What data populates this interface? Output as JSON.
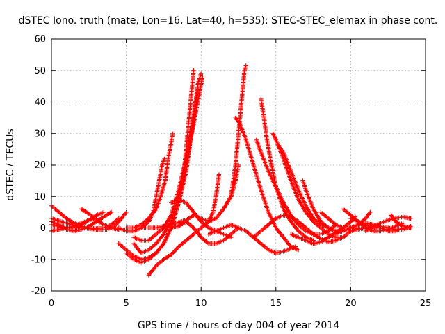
{
  "chart_data": {
    "type": "scatter",
    "title": "dSTEC Iono. truth (mate, Lon=16, Lat=40, h=535): STEC-STEC_elemax in phase cont.",
    "xlabel": "GPS time / hours of day 004 of year 2014",
    "ylabel": "dSTEC  / TECUs",
    "xlim": [
      0,
      25
    ],
    "ylim": [
      -20,
      60
    ],
    "xticks": [
      0,
      5,
      10,
      15,
      20,
      25
    ],
    "yticks": [
      -20,
      -10,
      0,
      10,
      20,
      30,
      40,
      50,
      60
    ],
    "grid": true,
    "legend": "none",
    "marker": "+",
    "colors": {
      "series": "#ff0000"
    },
    "series": [
      {
        "points": [
          [
            0,
            7
          ],
          [
            0.5,
            5
          ],
          [
            1,
            3
          ],
          [
            1.5,
            1.5
          ],
          [
            2,
            0.5
          ],
          [
            2.5,
            0
          ],
          [
            3,
            -0.2
          ],
          [
            3.5,
            0
          ],
          [
            4,
            1
          ],
          [
            4.5,
            3
          ]
        ]
      },
      {
        "points": [
          [
            0,
            2
          ],
          [
            0.5,
            1
          ],
          [
            1,
            0
          ],
          [
            1.5,
            0
          ],
          [
            2,
            1
          ],
          [
            2.5,
            2.5
          ],
          [
            3,
            4
          ],
          [
            3.5,
            5
          ]
        ]
      },
      {
        "points": [
          [
            0,
            1
          ],
          [
            0.5,
            0.5
          ],
          [
            1,
            -0.5
          ],
          [
            1.5,
            -1
          ],
          [
            2,
            -0.5
          ],
          [
            2.5,
            0.5
          ],
          [
            3,
            2
          ],
          [
            3.5,
            3.5
          ],
          [
            4,
            5
          ]
        ]
      },
      {
        "points": [
          [
            0,
            3
          ],
          [
            1,
            1.5
          ],
          [
            2,
            0
          ],
          [
            3,
            -0.5
          ],
          [
            3.7,
            -0.5
          ],
          [
            4.2,
            0.5
          ],
          [
            4.6,
            2.5
          ],
          [
            5,
            5
          ]
        ]
      },
      {
        "points": [
          [
            2,
            6
          ],
          [
            2.5,
            4.5
          ],
          [
            3,
            2.5
          ],
          [
            3.5,
            1
          ],
          [
            4,
            0
          ],
          [
            4.5,
            -0.5
          ]
        ]
      },
      {
        "points": [
          [
            0,
            -1
          ],
          [
            0.5,
            -0.5
          ],
          [
            1,
            0
          ],
          [
            1.5,
            0.5
          ],
          [
            2,
            1.5
          ],
          [
            2.5,
            2.5
          ],
          [
            3,
            3
          ]
        ]
      },
      {
        "points": [
          [
            4.5,
            0
          ],
          [
            5,
            -1
          ],
          [
            5.5,
            -1
          ],
          [
            6,
            0
          ],
          [
            6.5,
            2
          ],
          [
            6.8,
            5
          ],
          [
            7,
            10
          ],
          [
            7.2,
            15
          ],
          [
            7.4,
            20
          ],
          [
            7.55,
            22
          ]
        ]
      },
      {
        "points": [
          [
            5,
            0
          ],
          [
            5.5,
            0
          ],
          [
            6,
            1
          ],
          [
            6.5,
            3
          ],
          [
            7,
            6
          ],
          [
            7.3,
            10
          ],
          [
            7.6,
            15
          ],
          [
            7.8,
            22
          ],
          [
            8,
            27
          ],
          [
            8.1,
            30
          ]
        ]
      },
      {
        "points": [
          [
            4.5,
            -5
          ],
          [
            5,
            -7
          ],
          [
            5.5,
            -9
          ],
          [
            6,
            -10
          ],
          [
            6.5,
            -9.5
          ],
          [
            7,
            -8
          ],
          [
            7.5,
            -5
          ],
          [
            8,
            0
          ],
          [
            8.5,
            8
          ],
          [
            8.8,
            15
          ],
          [
            9,
            25
          ],
          [
            9.3,
            40
          ],
          [
            9.5,
            50
          ]
        ]
      },
      {
        "points": [
          [
            5,
            -8
          ],
          [
            5.5,
            -10
          ],
          [
            6,
            -11
          ],
          [
            6.5,
            -10
          ],
          [
            7,
            -8
          ],
          [
            7.5,
            -5
          ],
          [
            8,
            0
          ],
          [
            8.5,
            8
          ],
          [
            9,
            18
          ],
          [
            9.3,
            28
          ],
          [
            9.6,
            38
          ],
          [
            9.8,
            44
          ]
        ]
      },
      {
        "points": [
          [
            5.5,
            -5
          ],
          [
            6,
            -8
          ],
          [
            6.5,
            -7
          ],
          [
            7,
            -5
          ],
          [
            7.5,
            -2
          ],
          [
            8,
            2
          ],
          [
            8.5,
            10
          ],
          [
            9,
            20
          ],
          [
            9.5,
            35
          ],
          [
            9.8,
            46
          ],
          [
            10,
            49
          ]
        ]
      },
      {
        "points": [
          [
            5.5,
            -3
          ],
          [
            6,
            -4
          ],
          [
            6.5,
            -4
          ],
          [
            7,
            -2
          ],
          [
            7.5,
            0
          ],
          [
            8,
            4
          ],
          [
            8.5,
            12
          ],
          [
            9,
            22
          ],
          [
            9.5,
            33
          ],
          [
            9.9,
            43
          ],
          [
            10.1,
            48
          ]
        ]
      },
      {
        "points": [
          [
            6.5,
            -15
          ],
          [
            7,
            -12
          ],
          [
            7.5,
            -10
          ],
          [
            8,
            -8.5
          ],
          [
            8.5,
            -6
          ],
          [
            9,
            -4
          ],
          [
            9.5,
            -2
          ],
          [
            10,
            0
          ],
          [
            10.5,
            2
          ],
          [
            10.8,
            5
          ],
          [
            11,
            10
          ],
          [
            11.2,
            17
          ]
        ]
      },
      {
        "points": [
          [
            6,
            0
          ],
          [
            7,
            0
          ],
          [
            8,
            1
          ],
          [
            9,
            2.5
          ],
          [
            9.5,
            4
          ],
          [
            10,
            3
          ],
          [
            10.5,
            2
          ],
          [
            11,
            3
          ],
          [
            11.5,
            6
          ],
          [
            12,
            10
          ],
          [
            12.3,
            15
          ],
          [
            12.5,
            20
          ]
        ]
      },
      {
        "points": [
          [
            7.5,
            0
          ],
          [
            8.5,
            0.5
          ],
          [
            9,
            2
          ],
          [
            9.5,
            0
          ],
          [
            10,
            -3
          ],
          [
            10.5,
            -5
          ],
          [
            11,
            -5
          ],
          [
            11.5,
            -4
          ],
          [
            12,
            -2
          ],
          [
            12.5,
            0
          ]
        ]
      },
      {
        "points": [
          [
            8,
            8
          ],
          [
            8.5,
            9
          ],
          [
            9,
            8
          ],
          [
            9.5,
            5
          ],
          [
            10,
            2
          ],
          [
            10.5,
            0
          ],
          [
            11,
            -1
          ],
          [
            11.5,
            -2
          ],
          [
            12,
            -3
          ]
        ]
      },
      {
        "points": [
          [
            10.5,
            -2
          ],
          [
            11,
            -1
          ],
          [
            11.5,
            0
          ],
          [
            12,
            1
          ],
          [
            12.5,
            0
          ],
          [
            13,
            -1
          ],
          [
            13.5,
            -3
          ],
          [
            14,
            -5
          ],
          [
            14.5,
            -7
          ],
          [
            15,
            -8
          ],
          [
            15.5,
            -7.5
          ],
          [
            16,
            -6.5
          ],
          [
            16.3,
            -6
          ]
        ]
      },
      {
        "points": [
          [
            12,
            10
          ],
          [
            12.3,
            20
          ],
          [
            12.5,
            30
          ],
          [
            12.7,
            40
          ],
          [
            12.9,
            50
          ],
          [
            13,
            51.5
          ]
        ]
      },
      {
        "points": [
          [
            12.3,
            35
          ],
          [
            12.6,
            33
          ],
          [
            13,
            28
          ],
          [
            13.5,
            20
          ],
          [
            14,
            12
          ],
          [
            14.5,
            5
          ],
          [
            15,
            0
          ],
          [
            15.5,
            -3
          ],
          [
            16,
            -6
          ],
          [
            16.5,
            -7
          ]
        ]
      },
      {
        "points": [
          [
            14,
            41
          ],
          [
            14.2,
            35
          ],
          [
            14.4,
            28
          ],
          [
            14.7,
            20
          ],
          [
            15,
            13
          ],
          [
            15.5,
            6
          ],
          [
            16,
            2
          ],
          [
            16.5,
            -1
          ],
          [
            17,
            -3
          ],
          [
            17.5,
            -4
          ]
        ]
      },
      {
        "points": [
          [
            13.7,
            28
          ],
          [
            14,
            24
          ],
          [
            14.5,
            18
          ],
          [
            15,
            13
          ],
          [
            15.5,
            8
          ],
          [
            16,
            4
          ],
          [
            16.5,
            1
          ],
          [
            17,
            -1
          ],
          [
            17.5,
            -2
          ],
          [
            18,
            -2
          ],
          [
            18.5,
            -1
          ],
          [
            19,
            1
          ]
        ]
      },
      {
        "points": [
          [
            14.8,
            30
          ],
          [
            15,
            28
          ],
          [
            15.5,
            22
          ],
          [
            16,
            15
          ],
          [
            16.5,
            9
          ],
          [
            17,
            5
          ],
          [
            17.5,
            2
          ],
          [
            18,
            0
          ],
          [
            18.5,
            -2
          ],
          [
            19,
            -3
          ],
          [
            19.5,
            -3
          ]
        ]
      },
      {
        "points": [
          [
            15.2,
            26
          ],
          [
            15.5,
            24
          ],
          [
            16,
            18
          ],
          [
            16.5,
            12
          ],
          [
            17,
            7
          ],
          [
            17.5,
            3
          ],
          [
            18,
            1
          ],
          [
            18.5,
            0
          ]
        ]
      },
      {
        "points": [
          [
            16.8,
            15
          ],
          [
            17,
            12
          ],
          [
            17.5,
            6
          ],
          [
            18,
            2
          ],
          [
            18.5,
            0
          ],
          [
            19,
            -1
          ],
          [
            19.5,
            -1
          ],
          [
            20,
            0
          ]
        ]
      },
      {
        "points": [
          [
            13.5,
            -3
          ],
          [
            14,
            -1
          ],
          [
            14.5,
            1
          ],
          [
            15,
            3
          ],
          [
            15.5,
            4
          ],
          [
            16,
            3.5
          ],
          [
            16.5,
            2
          ],
          [
            17,
            0
          ],
          [
            17.5,
            -2
          ],
          [
            18,
            -3.5
          ],
          [
            18.5,
            -4.5
          ],
          [
            19,
            -4
          ],
          [
            19.5,
            -3
          ],
          [
            20,
            -1
          ],
          [
            20.5,
            0
          ]
        ]
      },
      {
        "points": [
          [
            16,
            -2
          ],
          [
            16.5,
            -3
          ],
          [
            17,
            -4
          ],
          [
            17.5,
            -5
          ],
          [
            18,
            -4.5
          ],
          [
            18.5,
            -3
          ],
          [
            19,
            -1.5
          ],
          [
            19.5,
            0
          ],
          [
            20,
            2
          ],
          [
            20.3,
            3.5
          ]
        ]
      },
      {
        "points": [
          [
            18,
            5
          ],
          [
            18.5,
            3
          ],
          [
            19,
            1
          ],
          [
            19.5,
            0
          ],
          [
            20,
            0
          ],
          [
            20.5,
            1
          ],
          [
            21,
            3
          ],
          [
            21.3,
            5
          ]
        ]
      },
      {
        "points": [
          [
            19,
            -2
          ],
          [
            19.5,
            -1
          ],
          [
            20,
            0
          ],
          [
            20.5,
            1
          ],
          [
            21,
            1.5
          ],
          [
            21.5,
            1
          ],
          [
            22,
            0.5
          ]
        ]
      },
      {
        "points": [
          [
            20,
            -1
          ],
          [
            20.5,
            -0.5
          ],
          [
            21,
            0
          ],
          [
            21.5,
            0.5
          ],
          [
            22,
            1.5
          ],
          [
            22.5,
            2.5
          ],
          [
            23,
            3
          ],
          [
            23.5,
            3.5
          ],
          [
            24,
            3
          ]
        ]
      },
      {
        "points": [
          [
            19.5,
            6
          ],
          [
            20,
            4
          ],
          [
            20.5,
            2
          ],
          [
            21,
            0
          ],
          [
            21.5,
            -1
          ],
          [
            22,
            -1
          ],
          [
            22.5,
            -0.5
          ],
          [
            23,
            0.5
          ],
          [
            23.5,
            1.5
          ]
        ]
      },
      {
        "points": [
          [
            20,
            3
          ],
          [
            20.5,
            2
          ],
          [
            21,
            1
          ],
          [
            21.5,
            0
          ],
          [
            22,
            0
          ],
          [
            22.5,
            -1
          ],
          [
            23,
            -1
          ],
          [
            23.5,
            0
          ],
          [
            24,
            0
          ]
        ]
      },
      {
        "points": [
          [
            21,
            -1
          ],
          [
            21.5,
            0
          ],
          [
            22,
            0.5
          ],
          [
            22.5,
            0
          ],
          [
            23,
            -0.5
          ],
          [
            23.5,
            -0.5
          ],
          [
            24,
            0.5
          ]
        ]
      },
      {
        "points": [
          [
            22.7,
            4
          ],
          [
            23,
            2
          ],
          [
            23.5,
            0.5
          ],
          [
            24,
            0
          ]
        ]
      }
    ]
  }
}
